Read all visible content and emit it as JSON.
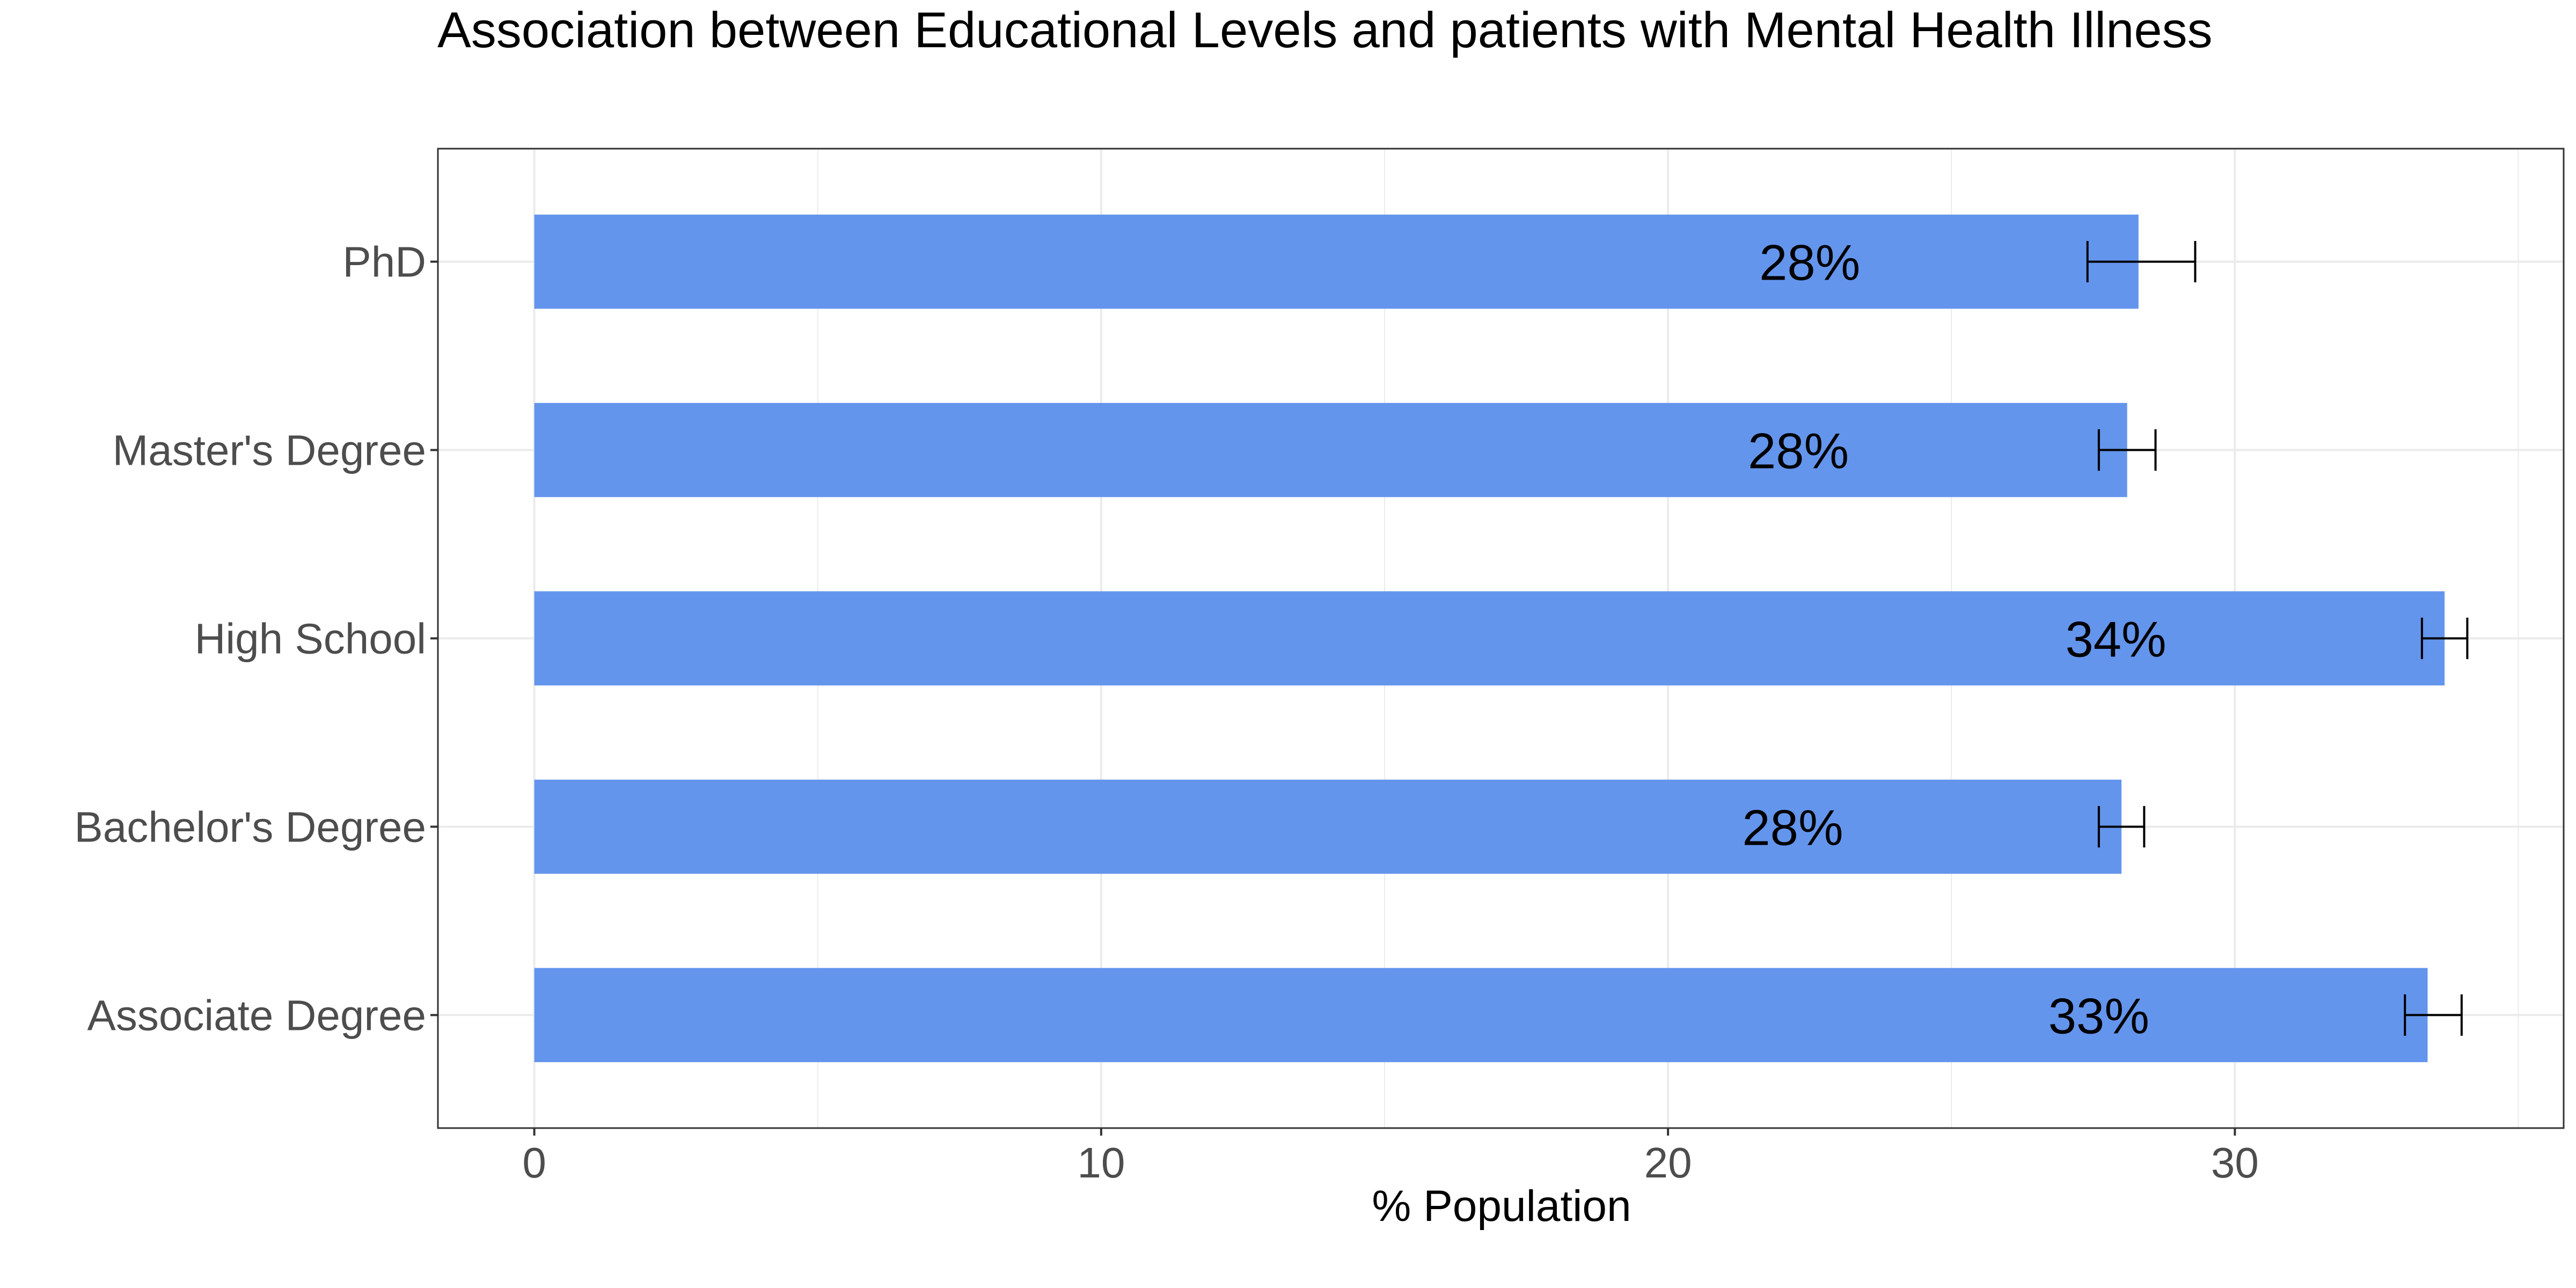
{
  "chart_data": {
    "type": "bar",
    "orientation": "horizontal",
    "title": "Association between Educational Levels and patients with Mental Health Illness",
    "xlabel": "% Population",
    "ylabel": "",
    "categories": [
      "Associate Degree",
      "Bachelor's Degree",
      "High School",
      "Master's Degree",
      "PhD"
    ],
    "values": [
      33.4,
      28.0,
      33.7,
      28.1,
      28.3
    ],
    "error_low": [
      33.0,
      27.6,
      33.3,
      27.6,
      27.4
    ],
    "error_high": [
      34.0,
      28.4,
      34.1,
      28.6,
      29.3
    ],
    "data_labels": [
      "33%",
      "28%",
      "34%",
      "28%",
      "28%"
    ],
    "xlim": [
      -1.7,
      35.8
    ],
    "xticks": [
      0,
      10,
      20,
      30
    ],
    "xtick_labels": [
      "0",
      "10",
      "20",
      "30"
    ],
    "grid": true,
    "legend": "none",
    "bar_color": "#6495ED",
    "error_color": "#000000",
    "panel_border_color": "#333333",
    "grid_color": "#ebebeb"
  }
}
